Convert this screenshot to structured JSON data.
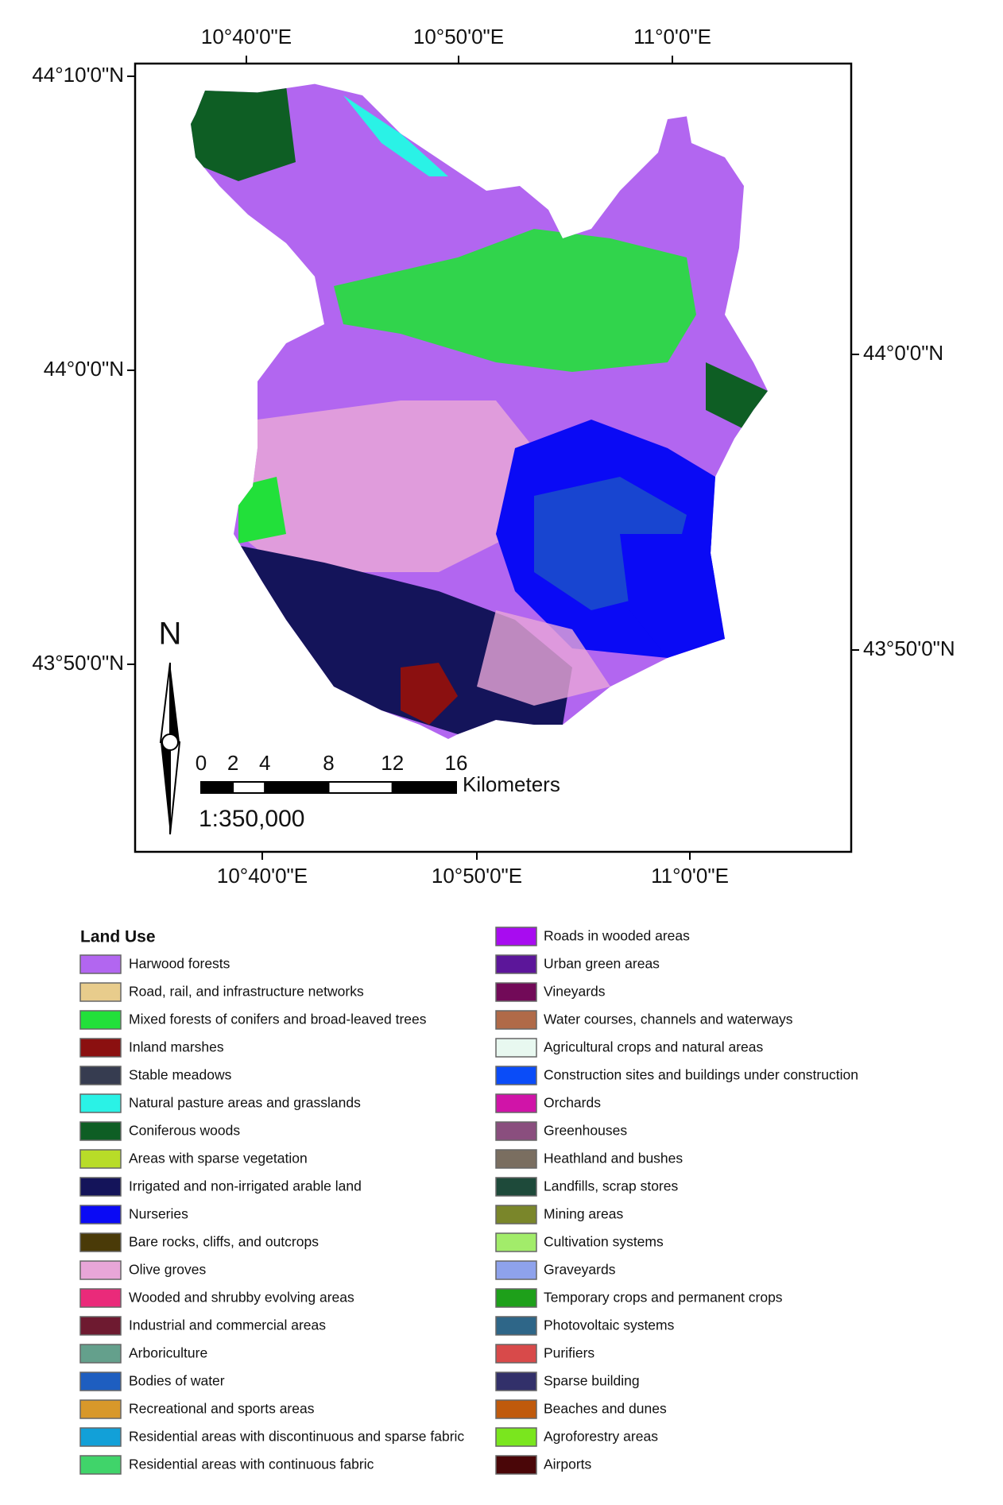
{
  "map": {
    "longitude_labels_top": [
      "10°40'0\"E",
      "10°50'0\"E",
      "11°0'0\"E"
    ],
    "longitude_labels_bottom": [
      "10°40'0\"E",
      "10°50'0\"E",
      "11°0'0\"E"
    ],
    "latitude_labels_left": [
      "44°10'0\"N",
      "44°0'0\"N",
      "43°50'0\"N"
    ],
    "latitude_labels_right": [
      "44°0'0\"N",
      "43°50'0\"N"
    ],
    "north_label": "N",
    "scale_bar": {
      "ticks": [
        0,
        2,
        4,
        8,
        12,
        16
      ],
      "unit": "Kilometers",
      "ratio": "1:350,000"
    }
  },
  "legend": {
    "title": "Land Use",
    "items": [
      {
        "label": "Harwood forests",
        "color": "#b266f0"
      },
      {
        "label": "Road, rail, and infrastructure networks",
        "color": "#e8cc8c"
      },
      {
        "label": "Mixed forests of conifers and broad-leaved trees",
        "color": "#22e03a"
      },
      {
        "label": "Inland marshes",
        "color": "#8b1010"
      },
      {
        "label": "Stable meadows",
        "color": "#363c50"
      },
      {
        "label": "Natural pasture areas and grasslands",
        "color": "#2af2e6"
      },
      {
        "label": "Coniferous woods",
        "color": "#0e5e24"
      },
      {
        "label": "Areas with sparse vegetation",
        "color": "#b8dc28"
      },
      {
        "label": "Irrigated and non-irrigated arable land",
        "color": "#14145a"
      },
      {
        "label": "Nurseries",
        "color": "#0a0af5"
      },
      {
        "label": "Bare rocks, cliffs, and outcrops",
        "color": "#4a3a08"
      },
      {
        "label": "Olive groves",
        "color": "#e8a6d8"
      },
      {
        "label": "Wooded and shrubby evolving areas",
        "color": "#ea2a7a"
      },
      {
        "label": "Industrial and commercial areas",
        "color": "#6e1a30"
      },
      {
        "label": "Arboriculture",
        "color": "#64a08c"
      },
      {
        "label": "Bodies of water",
        "color": "#1e5ec0"
      },
      {
        "label": "Recreational and sports areas",
        "color": "#d8982a"
      },
      {
        "label": "Residential areas with discontinuous and sparse fabric",
        "color": "#12a0d8"
      },
      {
        "label": "Residential areas with continuous fabric",
        "color": "#40d46a"
      },
      {
        "label": "Roads in wooded areas",
        "color": "#a80cf0"
      },
      {
        "label": "Urban green areas",
        "color": "#5c169a"
      },
      {
        "label": "Vineyards",
        "color": "#720a58"
      },
      {
        "label": "Water courses, channels and waterways",
        "color": "#b06a48"
      },
      {
        "label": "Agricultural crops and natural areas",
        "color": "#e8f8f0"
      },
      {
        "label": "Construction sites and buildings under construction",
        "color": "#0a4cf8"
      },
      {
        "label": "Orchards",
        "color": "#d014a8"
      },
      {
        "label": "Greenhouses",
        "color": "#8a4e7e"
      },
      {
        "label": "Heathland and bushes",
        "color": "#7a6e60"
      },
      {
        "label": "Landfills, scrap stores",
        "color": "#1e4a3a"
      },
      {
        "label": "Mining areas",
        "color": "#7a862a"
      },
      {
        "label": "Cultivation systems",
        "color": "#a2ec6a"
      },
      {
        "label": "Graveyards",
        "color": "#8ea2ec"
      },
      {
        "label": "Temporary crops and permanent crops",
        "color": "#1ea01a"
      },
      {
        "label": "Photovoltaic systems",
        "color": "#2e6688"
      },
      {
        "label": "Purifiers",
        "color": "#d84a4a"
      },
      {
        "label": "Sparse building",
        "color": "#32306a"
      },
      {
        "label": "Beaches and dunes",
        "color": "#c05a0c"
      },
      {
        "label": "Agroforestry areas",
        "color": "#7ae61e"
      },
      {
        "label": "Airports",
        "color": "#4a0608"
      }
    ]
  }
}
